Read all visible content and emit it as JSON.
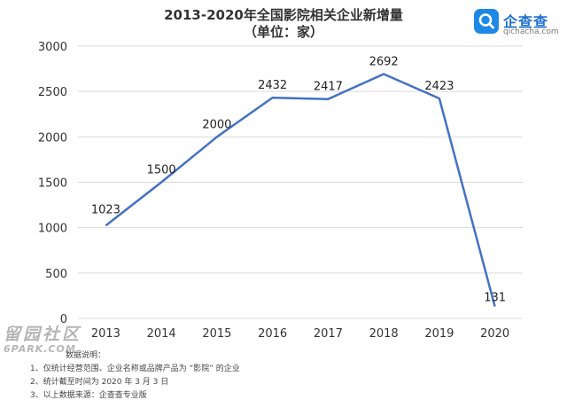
{
  "header": {
    "title_line1": "2013-2020年全国影院相关企业新增量",
    "title_line2": "（单位：家）"
  },
  "logo": {
    "name": "企查查",
    "domain": "qichacha.com"
  },
  "watermark": {
    "text_cn": "留园社区",
    "text_en": "6PARK.COM"
  },
  "notes": {
    "title": "数据说明：",
    "items": [
      "1、仅统计经营范围、企业名称或品牌产品为 “影院” 的企业",
      "2、统计截至时间为 2020 年 3 月 3 日",
      "3、以上数据来源：企查查专业版"
    ]
  },
  "colors": {
    "line": "#4472c4",
    "grid": "#d9d9d9",
    "brand": "#1e88e5"
  },
  "chart_data": {
    "type": "line",
    "title": "2013-2020年全国影院相关企业新增量",
    "subtitle": "（单位：家）",
    "categories": [
      "2013",
      "2014",
      "2015",
      "2016",
      "2017",
      "2018",
      "2019",
      "2020"
    ],
    "series": [
      {
        "values": [
          1023,
          1500,
          2000,
          2432,
          2417,
          2692,
          2423,
          131
        ]
      }
    ],
    "data_labels": [
      "1023",
      "1500",
      "2000",
      "2432",
      "2417",
      "2692",
      "2423",
      "131"
    ],
    "yticks": [
      0,
      500,
      1000,
      1500,
      2000,
      2500,
      3000
    ],
    "ylim": [
      0,
      3000
    ],
    "grid": true,
    "legend": "none"
  }
}
